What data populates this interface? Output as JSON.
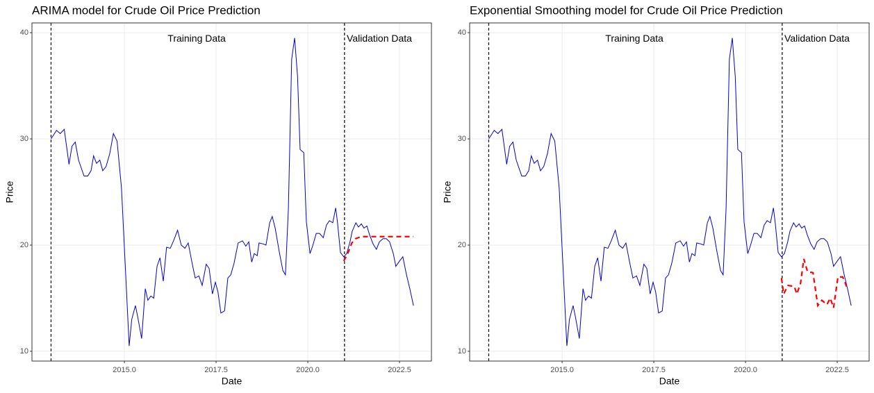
{
  "chart_data": [
    {
      "type": "line",
      "title": "ARIMA model for Crude Oil Price Prediction",
      "xlabel": "Date",
      "ylabel": "Price",
      "xlim": [
        2012.48,
        2023.37
      ],
      "ylim": [
        9.08,
        40.92
      ],
      "xticks": [
        {
          "value": 2015,
          "label": "2015.0"
        },
        2017.5,
        {
          "value": 2020,
          "label": "2020.0"
        },
        2022.5
      ],
      "yticks": [
        10,
        20,
        30,
        40
      ],
      "grid": true,
      "vlines": [
        2013,
        2021
      ],
      "annotations": [
        {
          "text": "Training Data",
          "x": 2016.97,
          "y": 39.4
        },
        {
          "text": "Validation Data",
          "x": 2021.95,
          "y": 39.4
        }
      ],
      "series": [
        {
          "color": "#0000cc",
          "style": "solid",
          "x": [
            2013.0,
            2013.15,
            2013.25,
            2013.36,
            2013.49,
            2013.57,
            2013.66,
            2013.75,
            2013.9,
            2014.0,
            2014.09,
            2014.16,
            2014.24,
            2014.33,
            2014.41,
            2014.5,
            2014.6,
            2014.7,
            2014.8,
            2014.92,
            2015.04,
            2015.13,
            2015.2,
            2015.3,
            2015.36,
            2015.47,
            2015.57,
            2015.64,
            2015.72,
            2015.8,
            2015.89,
            2015.97,
            2016.06,
            2016.15,
            2016.25,
            2016.34,
            2016.45,
            2016.55,
            2016.65,
            2016.74,
            2016.84,
            2016.93,
            2017.03,
            2017.12,
            2017.23,
            2017.31,
            2017.4,
            2017.48,
            2017.55,
            2017.63,
            2017.73,
            2017.82,
            2017.9,
            2017.99,
            2018.1,
            2018.22,
            2018.31,
            2018.39,
            2018.47,
            2018.54,
            2018.62,
            2018.67,
            2018.79,
            2018.86,
            2018.96,
            2019.03,
            2019.11,
            2019.22,
            2019.32,
            2019.39,
            2019.47,
            2019.56,
            2019.64,
            2019.72,
            2019.79,
            2019.89,
            2019.96,
            2020.06,
            2020.13,
            2020.23,
            2020.32,
            2020.42,
            2020.51,
            2020.59,
            2020.68,
            2020.76,
            2020.81,
            2020.89,
            2020.98,
            2021.06,
            2021.15,
            2021.21,
            2021.31,
            2021.38,
            2021.46,
            2021.53,
            2021.61,
            2021.68,
            2021.78,
            2021.87,
            2021.95,
            2022.05,
            2022.14,
            2022.23,
            2022.33,
            2022.4,
            2022.5,
            2022.59,
            2022.69,
            2022.78,
            2022.88
          ],
          "values": [
            30,
            30.8,
            30.5,
            30.9,
            27.6,
            29.3,
            29.7,
            28,
            26.5,
            26.5,
            27,
            28.4,
            27.7,
            28,
            27,
            27.4,
            28.6,
            30.5,
            29.8,
            25.4,
            16.9,
            10.5,
            13,
            14.3,
            13.3,
            11.2,
            15.9,
            14.8,
            15.2,
            15,
            18,
            18.8,
            16.6,
            19.8,
            19.7,
            20.4,
            21.4,
            20,
            19.7,
            20.2,
            18.4,
            16.9,
            17.1,
            16.2,
            18.2,
            17.8,
            15.4,
            16.5,
            15.6,
            13.6,
            13.8,
            16.9,
            17.2,
            18.3,
            20.2,
            20.4,
            19.9,
            20.3,
            18.4,
            19.2,
            19,
            20.2,
            20.1,
            20,
            22.1,
            22.7,
            21.6,
            19.4,
            17.6,
            17.2,
            23.4,
            37.5,
            39.5,
            35.9,
            29,
            28.7,
            22.2,
            19.2,
            19.9,
            21.1,
            21.1,
            20.7,
            21.9,
            22.3,
            22.1,
            23.5,
            22.1,
            19.3,
            18.9,
            19.2,
            20.3,
            21.3,
            22.1,
            21.7,
            22,
            21.6,
            21.8,
            21,
            20.1,
            19.6,
            20.3,
            20.6,
            20.6,
            20.3,
            19.2,
            18,
            18.5,
            18.9,
            17.2,
            15.9,
            14.3
          ]
        },
        {
          "color": "#ff0000",
          "style": "dashed",
          "x": [
            2020.98,
            2021.1,
            2021.2,
            2021.3,
            2021.45,
            2021.6,
            2022.0,
            2022.5,
            2022.88
          ],
          "values": [
            18.5,
            19.3,
            20.2,
            20.6,
            20.8,
            20.8,
            20.8,
            20.8,
            20.8
          ]
        }
      ]
    },
    {
      "type": "line",
      "title": "Exponential Smoothing model for Crude Oil Price Prediction",
      "xlabel": "Date",
      "ylabel": "Price",
      "xlim": [
        2012.48,
        2023.37
      ],
      "ylim": [
        9.08,
        40.92
      ],
      "xticks": [
        {
          "value": 2015,
          "label": "2015.0"
        },
        2017.5,
        {
          "value": 2020,
          "label": "2020.0"
        },
        2022.5
      ],
      "yticks": [
        10,
        20,
        30,
        40
      ],
      "grid": true,
      "vlines": [
        2013,
        2021
      ],
      "annotations": [
        {
          "text": "Training Data",
          "x": 2016.97,
          "y": 39.4
        },
        {
          "text": "Validation Data",
          "x": 2021.95,
          "y": 39.4
        }
      ],
      "series": [
        {
          "color": "#0000cc",
          "style": "solid",
          "x": [
            2013.0,
            2013.15,
            2013.25,
            2013.36,
            2013.49,
            2013.57,
            2013.66,
            2013.75,
            2013.9,
            2014.0,
            2014.09,
            2014.16,
            2014.24,
            2014.33,
            2014.41,
            2014.5,
            2014.6,
            2014.7,
            2014.8,
            2014.92,
            2015.04,
            2015.13,
            2015.2,
            2015.3,
            2015.36,
            2015.47,
            2015.57,
            2015.64,
            2015.72,
            2015.8,
            2015.89,
            2015.97,
            2016.06,
            2016.15,
            2016.25,
            2016.34,
            2016.45,
            2016.55,
            2016.65,
            2016.74,
            2016.84,
            2016.93,
            2017.03,
            2017.12,
            2017.23,
            2017.31,
            2017.4,
            2017.48,
            2017.55,
            2017.63,
            2017.73,
            2017.82,
            2017.9,
            2017.99,
            2018.1,
            2018.22,
            2018.31,
            2018.39,
            2018.47,
            2018.54,
            2018.62,
            2018.67,
            2018.79,
            2018.86,
            2018.96,
            2019.03,
            2019.11,
            2019.22,
            2019.32,
            2019.39,
            2019.47,
            2019.56,
            2019.64,
            2019.72,
            2019.79,
            2019.89,
            2019.96,
            2020.06,
            2020.13,
            2020.23,
            2020.32,
            2020.42,
            2020.51,
            2020.59,
            2020.68,
            2020.76,
            2020.81,
            2020.89,
            2020.98,
            2021.06,
            2021.15,
            2021.21,
            2021.31,
            2021.38,
            2021.46,
            2021.53,
            2021.61,
            2021.68,
            2021.78,
            2021.87,
            2021.95,
            2022.05,
            2022.14,
            2022.23,
            2022.33,
            2022.4,
            2022.5,
            2022.59,
            2022.69,
            2022.78,
            2022.88
          ],
          "values": [
            30,
            30.8,
            30.5,
            30.9,
            27.6,
            29.3,
            29.7,
            28,
            26.5,
            26.5,
            27,
            28.4,
            27.7,
            28,
            27,
            27.4,
            28.6,
            30.5,
            29.8,
            25.4,
            16.9,
            10.5,
            13,
            14.3,
            13.3,
            11.2,
            15.9,
            14.8,
            15.2,
            15,
            18,
            18.8,
            16.6,
            19.8,
            19.7,
            20.4,
            21.4,
            20,
            19.7,
            20.2,
            18.4,
            16.9,
            17.1,
            16.2,
            18.2,
            17.8,
            15.4,
            16.5,
            15.6,
            13.6,
            13.8,
            16.9,
            17.2,
            18.3,
            20.2,
            20.4,
            19.9,
            20.3,
            18.4,
            19.2,
            19,
            20.2,
            20.1,
            20,
            22.1,
            22.7,
            21.6,
            19.4,
            17.6,
            17.2,
            23.4,
            37.5,
            39.5,
            35.9,
            29,
            28.7,
            22.2,
            19.2,
            19.9,
            21.1,
            21.1,
            20.7,
            21.9,
            22.3,
            22.1,
            23.5,
            22.1,
            19.3,
            18.9,
            19.2,
            20.3,
            21.3,
            22.1,
            21.7,
            22,
            21.6,
            21.8,
            21,
            20.1,
            19.6,
            20.3,
            20.6,
            20.6,
            20.3,
            19.2,
            18,
            18.5,
            18.9,
            17.2,
            15.9,
            14.3
          ]
        },
        {
          "color": "#ff0000",
          "style": "dashed",
          "x": [
            2020.98,
            2021.04,
            2021.16,
            2021.33,
            2021.4,
            2021.5,
            2021.59,
            2021.69,
            2021.84,
            2021.97,
            2022.08,
            2022.22,
            2022.31,
            2022.4,
            2022.52,
            2022.65,
            2022.78
          ],
          "values": [
            16.9,
            15.4,
            16.2,
            16.1,
            15.4,
            16.4,
            18.7,
            17.5,
            17.4,
            14.3,
            14.8,
            14.4,
            15,
            14.1,
            17,
            17,
            15.9
          ]
        }
      ]
    }
  ]
}
